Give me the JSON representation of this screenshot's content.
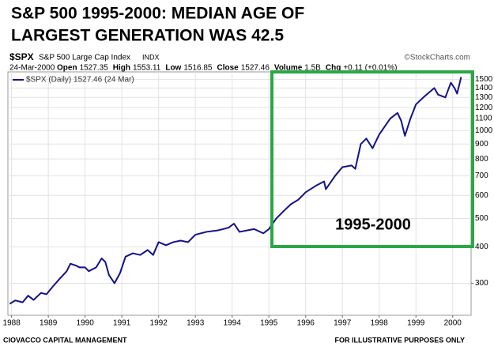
{
  "chart_data": {
    "type": "line",
    "title_lines": [
      "S&P 500 1995-2000: MEDIAN AGE OF",
      "LARGEST GENERATION WAS 42.5"
    ],
    "symbol": "$SPX",
    "index_name": "S&P 500 Large Cap Index",
    "exchange": "INDX",
    "source": "©StockCharts.com",
    "date": "24-Mar-2000",
    "quote": [
      {
        "label": "Open",
        "value": "1527.35"
      },
      {
        "label": "High",
        "value": "1553.11"
      },
      {
        "label": "Low",
        "value": "1516.85"
      },
      {
        "label": "Close",
        "value": "1527.46"
      },
      {
        "label": "Volume",
        "value": "1.5B"
      },
      {
        "label": "Chg",
        "value": "+0.11 (+0.01%)"
      }
    ],
    "annotation": "1995-2000",
    "footer_left": "CIOVACCO CAPITAL MANAGEMENT",
    "footer_right": "FOR ILLUSTRATIVE PURPOSES ONLY",
    "log_y": true,
    "grid": true,
    "xlim": [
      1987.9,
      2000.5
    ],
    "xticks": [
      1988,
      1989,
      1990,
      1991,
      1992,
      1993,
      1994,
      1995,
      1996,
      1997,
      1998,
      1999,
      2000
    ],
    "ylim": [
      233,
      1590
    ],
    "yticks": [
      300,
      400,
      500,
      600,
      700,
      800,
      900,
      1000,
      1100,
      1200,
      1300,
      1400,
      1500
    ],
    "x": [
      1987.95,
      1988.1,
      1988.3,
      1988.45,
      1988.6,
      1988.8,
      1988.95,
      1989.1,
      1989.3,
      1989.5,
      1989.6,
      1989.75,
      1989.85,
      1990.0,
      1990.1,
      1990.3,
      1990.45,
      1990.55,
      1990.65,
      1990.8,
      1990.95,
      1991.1,
      1991.3,
      1991.5,
      1991.7,
      1991.85,
      1992.0,
      1992.2,
      1992.4,
      1992.6,
      1992.8,
      1993.0,
      1993.3,
      1993.6,
      1993.9,
      1994.05,
      1994.2,
      1994.4,
      1994.6,
      1994.85,
      1995.0,
      1995.2,
      1995.4,
      1995.6,
      1995.8,
      1996.0,
      1996.3,
      1996.5,
      1996.55,
      1996.8,
      1997.0,
      1997.25,
      1997.35,
      1997.5,
      1997.65,
      1997.82,
      1998.0,
      1998.3,
      1998.5,
      1998.6,
      1998.7,
      1998.85,
      1999.0,
      1999.2,
      1999.5,
      1999.6,
      1999.8,
      1999.95,
      2000.05,
      2000.12,
      2000.23
    ],
    "series": [
      {
        "name": "$SPX (Daily) 1527.46 (24 Mar)",
        "color": "#12128a",
        "values": [
          255,
          262,
          258,
          272,
          263,
          278,
          275,
          290,
          310,
          330,
          350,
          345,
          340,
          340,
          330,
          340,
          365,
          355,
          320,
          300,
          325,
          370,
          380,
          375,
          390,
          375,
          415,
          405,
          415,
          420,
          415,
          440,
          450,
          455,
          465,
          480,
          450,
          455,
          460,
          445,
          460,
          500,
          530,
          560,
          580,
          615,
          650,
          670,
          630,
          700,
          750,
          760,
          740,
          900,
          940,
          870,
          970,
          1100,
          1150,
          1080,
          960,
          1100,
          1230,
          1300,
          1400,
          1330,
          1300,
          1460,
          1400,
          1340,
          1527
        ]
      }
    ]
  }
}
